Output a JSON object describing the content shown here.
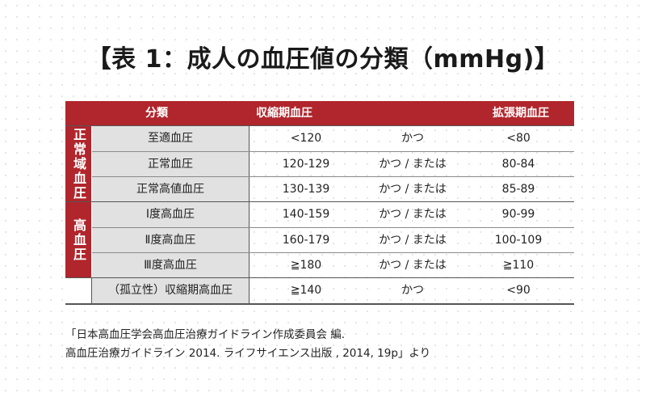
{
  "title": "【表 1：成人の血圧値の分類（mmHg)】",
  "table": {
    "header": {
      "category": "分類",
      "systolic": "収縮期血圧",
      "diastolic": "拡張期血圧"
    },
    "groups": [
      {
        "label": "正常域血圧",
        "rows": [
          {
            "category": "至適血圧",
            "systolic": "<120",
            "condition": "かつ",
            "diastolic": "<80"
          },
          {
            "category": "正常血圧",
            "systolic": "120-129",
            "condition": "かつ / または",
            "diastolic": "80-84"
          },
          {
            "category": "正常高値血圧",
            "systolic": "130-139",
            "condition": "かつ / または",
            "diastolic": "85-89"
          }
        ]
      },
      {
        "label": "高血圧",
        "rows": [
          {
            "category": "Ⅰ度高血圧",
            "systolic": "140-159",
            "condition": "かつ / または",
            "diastolic": "90-99"
          },
          {
            "category": "Ⅱ度高血圧",
            "systolic": "160-179",
            "condition": "かつ / または",
            "diastolic": "100-109"
          },
          {
            "category": "Ⅲ度高血圧",
            "systolic": "≧180",
            "condition": "かつ / または",
            "diastolic": "≧110"
          }
        ]
      },
      {
        "label": "",
        "rows": [
          {
            "category": "（孤立性）収縮期高血圧",
            "systolic": "≧140",
            "condition": "かつ",
            "diastolic": "<90"
          }
        ]
      }
    ]
  },
  "source": {
    "line1": "「日本高血圧学会高血圧治療ガイドライン作成委員会 編.",
    "line2": "高血圧治療ガイドライン 2014.  ライフサイエンス出版 , 2014, 19p」より"
  },
  "colors": {
    "accent": "#b0262c",
    "category_bg": "#e1e1e1"
  }
}
